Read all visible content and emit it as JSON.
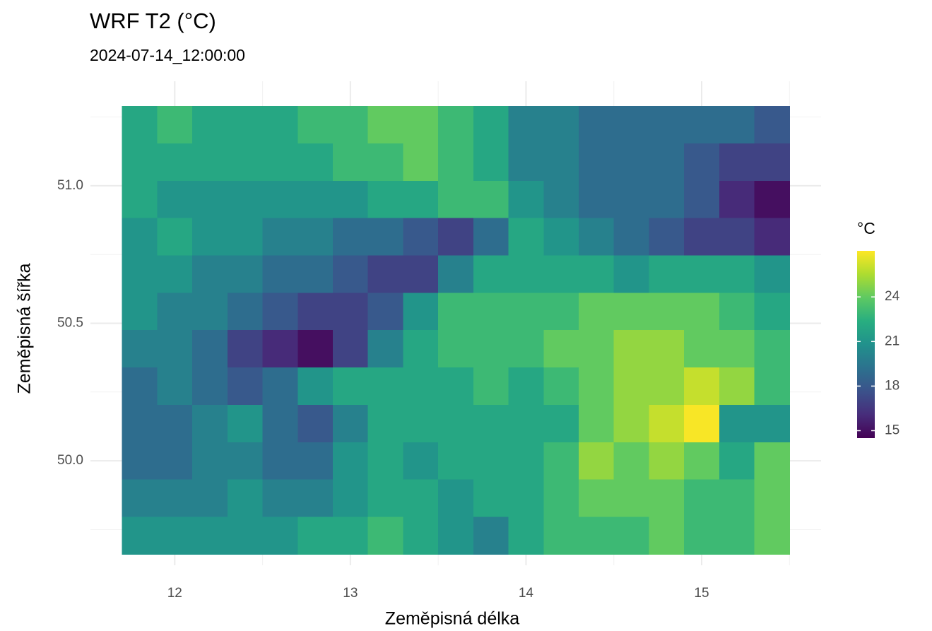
{
  "chart_data": {
    "type": "raster",
    "title": "WRF T2 (°C)",
    "subtitle": "2024-07-14_12:00:00",
    "x_label": "Zeměpisná délka",
    "y_label": "Zeměpisná šířka",
    "legend_title": "°C",
    "xlim": [
      11.52,
      15.68
    ],
    "ylim": [
      49.62,
      51.38
    ],
    "xticks": [
      12,
      13,
      14,
      15
    ],
    "yticks": [
      {
        "value": 50,
        "label": "50.0"
      },
      50.5,
      {
        "value": 51,
        "label": "51.0"
      }
    ],
    "grid": true,
    "extent_x": [
      11.7,
      15.5
    ],
    "extent_y": [
      49.66,
      51.29
    ],
    "clim": [
      14.5,
      27.1
    ],
    "cticks": [
      15,
      18,
      21,
      24
    ],
    "colormap": [
      "#440154",
      "#472d7b",
      "#3b528b",
      "#2c728e",
      "#21918c",
      "#28ae80",
      "#5ec962",
      "#addc30",
      "#fde725"
    ],
    "z": [
      [
        22,
        23,
        22,
        22,
        22,
        23,
        23,
        24,
        24,
        23,
        22,
        20,
        20,
        19,
        19,
        19,
        19,
        19,
        18
      ],
      [
        22,
        22,
        22,
        22,
        22,
        22,
        23,
        23,
        24,
        23,
        22,
        20,
        20,
        19,
        19,
        19,
        18,
        17,
        17
      ],
      [
        22,
        21,
        21,
        21,
        21,
        21,
        21,
        22,
        22,
        23,
        23,
        21,
        20,
        19,
        19,
        19,
        18,
        16,
        15
      ],
      [
        21,
        22,
        21,
        21,
        20,
        20,
        19,
        19,
        18,
        17,
        19,
        22,
        21,
        20,
        19,
        18,
        17,
        17,
        16
      ],
      [
        21,
        21,
        20,
        20,
        19,
        19,
        18,
        17,
        17,
        20,
        22,
        22,
        22,
        22,
        21,
        22,
        22,
        22,
        21
      ],
      [
        21,
        20,
        20,
        19,
        18,
        17,
        17,
        18,
        21,
        23,
        23,
        23,
        23,
        24,
        24,
        24,
        24,
        23,
        22
      ],
      [
        20,
        20,
        19,
        17,
        16,
        15,
        17,
        20,
        22,
        23,
        23,
        23,
        24,
        24,
        25,
        25,
        24,
        24,
        23
      ],
      [
        19,
        20,
        19,
        18,
        19,
        21,
        22,
        22,
        22,
        22,
        23,
        22,
        23,
        24,
        25,
        25,
        26,
        25,
        23
      ],
      [
        19,
        19,
        20,
        21,
        19,
        18,
        20,
        22,
        22,
        22,
        22,
        22,
        22,
        24,
        25,
        26,
        27,
        21,
        21
      ],
      [
        19,
        19,
        20,
        20,
        19,
        19,
        21,
        22,
        21,
        22,
        22,
        22,
        23,
        25,
        24,
        25,
        24,
        22,
        24
      ],
      [
        20,
        20,
        20,
        21,
        20,
        20,
        21,
        22,
        22,
        21,
        22,
        22,
        23,
        24,
        24,
        24,
        23,
        23,
        24
      ],
      [
        21,
        21,
        21,
        21,
        21,
        22,
        22,
        23,
        22,
        21,
        20,
        22,
        23,
        23,
        23,
        24,
        23,
        23,
        24
      ]
    ]
  }
}
